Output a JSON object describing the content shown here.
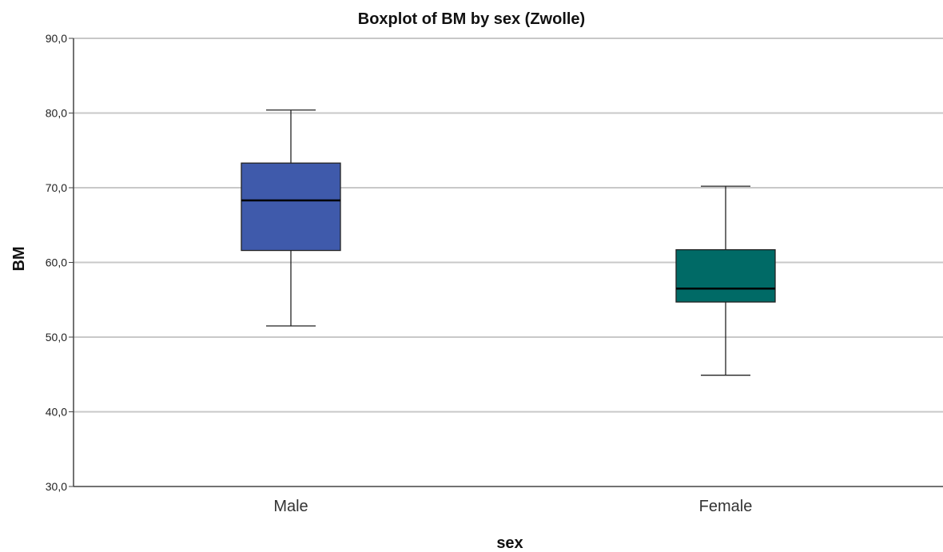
{
  "chart_data": {
    "type": "boxplot",
    "title": "Boxplot of BM by sex (Zwolle)",
    "xlabel": "sex",
    "ylabel": "BM",
    "ylim": [
      30,
      90
    ],
    "yticks": [
      "30,0",
      "40,0",
      "50,0",
      "60,0",
      "70,0",
      "80,0",
      "90,0"
    ],
    "ytick_values": [
      30,
      40,
      50,
      60,
      70,
      80,
      90
    ],
    "grid": "horizontal",
    "categories": [
      "Male",
      "Female"
    ],
    "boxes": [
      {
        "category": "Male",
        "whisker_low": 51.5,
        "q1": 61.6,
        "median": 68.3,
        "q3": 73.3,
        "whisker_high": 80.4,
        "color": "#3F5AAB"
      },
      {
        "category": "Female",
        "whisker_low": 44.9,
        "q1": 54.7,
        "median": 56.5,
        "q3": 61.7,
        "whisker_high": 70.2,
        "color": "#006A66"
      }
    ]
  }
}
